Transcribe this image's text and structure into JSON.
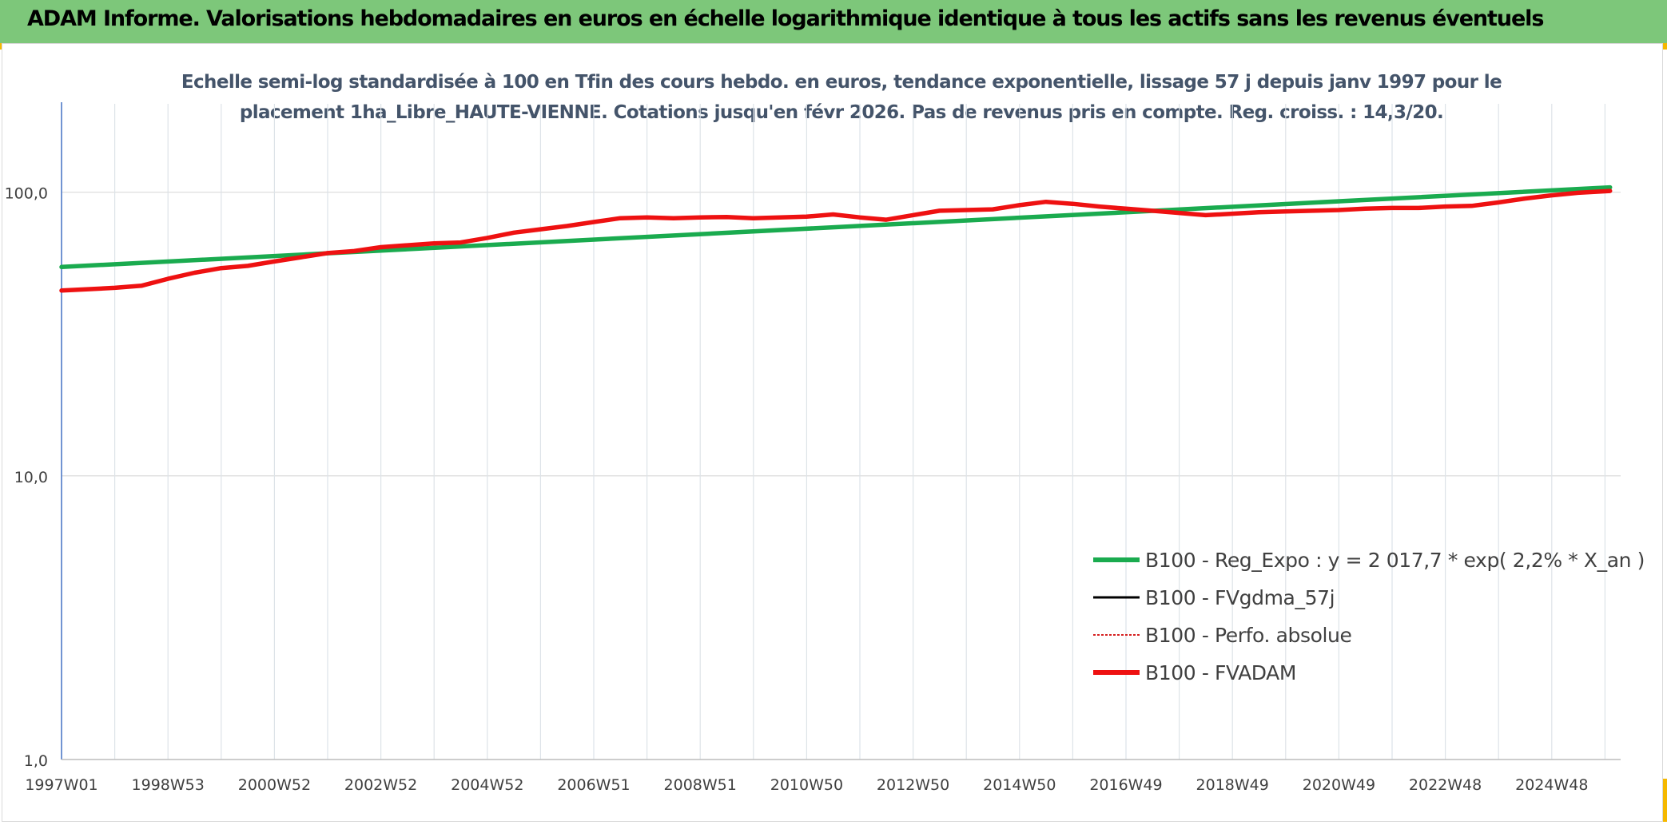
{
  "header": {
    "title": "ADAM Informe. Valorisations hebdomadaires en euros en échelle logarithmique identique à tous les actifs sans les revenus éventuels"
  },
  "colors": {
    "header_bg": "#7dc77a",
    "accent": "#f5b800",
    "trend": "#1aab4f",
    "fvadam": "#ee1111",
    "fvgdma": "#000000",
    "perfo": "#d62020"
  },
  "chart_data": {
    "type": "line",
    "title_lines": [
      "Echelle semi-log standardisée à 100 en Tfin des cours hebdo. en euros, tendance exponentielle, lissage 57 j depuis janv 1997 pour le",
      "placement 1ha_Libre_HAUTE-VIENNE. Cotations jusqu'en févr 2026. Pas de revenus pris en compte. Reg. croiss. : 14,3/20."
    ],
    "y_scale": "log",
    "ylim": [
      1,
      180
    ],
    "y_ticks": [
      {
        "value": 1,
        "label": "1,0"
      },
      {
        "value": 10,
        "label": "10,0"
      },
      {
        "value": 100,
        "label": "100,0"
      }
    ],
    "x_tick_labels": [
      "1997W01",
      "1998W53",
      "2000W52",
      "2002W52",
      "2004W52",
      "2006W51",
      "2008W51",
      "2010W50",
      "2012W50",
      "2014W50",
      "2016W49",
      "2018W49",
      "2020W49",
      "2022W48",
      "2024W48"
    ],
    "xlim": [
      1997.0,
      2026.3
    ],
    "grid": true,
    "legend_position": "lower-right",
    "series": [
      {
        "name": "B100 - Reg_Expo : y = 2 017,7 * exp( 2,2% *  X_an )",
        "color": "#1aab4f",
        "style": "solid",
        "x": [
          1997.0,
          2026.1
        ],
        "y": [
          54.5,
          104.0
        ]
      },
      {
        "name": "B100 - FVgdma_57j",
        "color": "#000000",
        "style": "solid",
        "x": [],
        "y": []
      },
      {
        "name": "B100 - Perfo. absolue",
        "color": "#d62020",
        "style": "dotted",
        "x": [],
        "y": []
      },
      {
        "name": "B100 - FVADAM",
        "color": "#ee1111",
        "style": "solid",
        "x": [
          1997.0,
          1997.5,
          1998.0,
          1998.5,
          1999.0,
          1999.5,
          2000.0,
          2000.5,
          2001.0,
          2001.5,
          2002.0,
          2002.5,
          2003.0,
          2003.5,
          2004.0,
          2004.5,
          2005.0,
          2005.5,
          2006.0,
          2006.5,
          2007.0,
          2007.5,
          2008.0,
          2008.5,
          2009.0,
          2009.5,
          2010.0,
          2010.5,
          2011.0,
          2011.5,
          2012.0,
          2012.5,
          2013.0,
          2013.5,
          2014.0,
          2014.5,
          2015.0,
          2015.5,
          2016.0,
          2016.5,
          2017.0,
          2017.5,
          2018.0,
          2018.5,
          2019.0,
          2019.5,
          2020.0,
          2020.5,
          2021.0,
          2021.5,
          2022.0,
          2022.5,
          2023.0,
          2023.5,
          2024.0,
          2024.5,
          2025.0,
          2025.5,
          2026.1
        ],
        "y": [
          45.0,
          45.5,
          46.0,
          46.8,
          49.5,
          52.0,
          54.0,
          55.0,
          57.0,
          59.0,
          61.0,
          62.0,
          64.0,
          65.0,
          66.0,
          66.5,
          69.0,
          72.0,
          74.0,
          76.0,
          78.5,
          81.0,
          81.5,
          81.0,
          81.5,
          81.8,
          81.0,
          81.5,
          82.0,
          83.5,
          81.5,
          80.0,
          83.0,
          86.0,
          86.5,
          87.0,
          90.0,
          92.5,
          91.0,
          89.0,
          87.5,
          86.0,
          84.5,
          83.0,
          84.0,
          85.0,
          85.5,
          86.0,
          86.5,
          87.5,
          88.0,
          88.0,
          89.0,
          89.5,
          92.0,
          95.0,
          97.5,
          99.5,
          101.0
        ]
      }
    ]
  }
}
